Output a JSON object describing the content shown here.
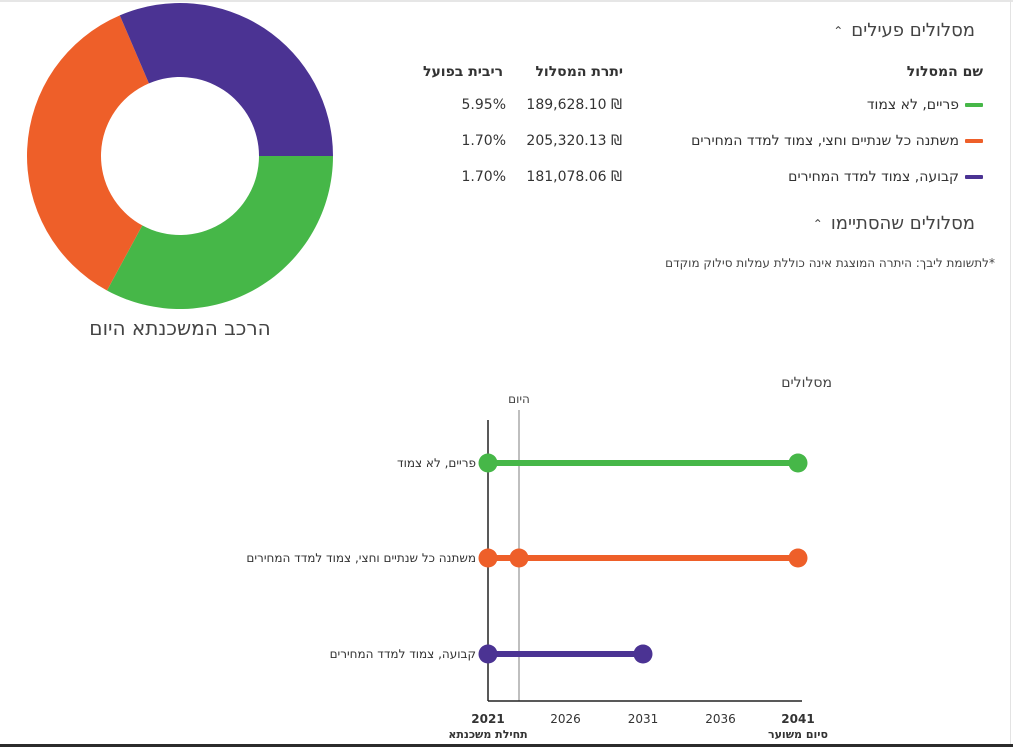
{
  "donut": {
    "title": "הרכב המשכנתא היום"
  },
  "active_tracks": {
    "header": "מסלולים פעילים",
    "columns": {
      "name": "שם המסלול",
      "balance": "יתרת המסלול",
      "rate": "ריבית בפועל"
    },
    "rows": [
      {
        "name": "פריים, לא צמוד",
        "balance": "189,628.10 ₪",
        "rate": "5.95%",
        "color": "#46b748"
      },
      {
        "name": "משתנה כל שנתיים וחצי, צמוד למדד המחירים",
        "balance": "205,320.13 ₪",
        "rate": "1.70%",
        "color": "#ee5f29"
      },
      {
        "name": "קבועה, צמוד למדד המחירים",
        "balance": "181,078.06 ₪",
        "rate": "1.70%",
        "color": "#4b3393"
      }
    ]
  },
  "ended_tracks": {
    "header": "מסלולים שהסתיימו"
  },
  "note": "*לתשומת ליבך: היתרה המוצגת אינה כוללת עמלות סילוק מוקדם",
  "chart_data": [
    {
      "type": "pie",
      "title": "הרכב המשכנתא היום",
      "categories": [
        "פריים, לא צמוד",
        "משתנה כל שנתיים וחצי, צמוד למדד המחירים",
        "קבועה, צמוד למדד המחירים"
      ],
      "values": [
        189628.1,
        205320.13,
        181078.06
      ],
      "colors": [
        "#46b748",
        "#ee5f29",
        "#4b3393"
      ],
      "donut": true
    },
    {
      "type": "timeline",
      "title": "",
      "legend_title": "מסלולים",
      "today_label": "היום",
      "today_x": 2023,
      "xlim": [
        2021,
        2041
      ],
      "xticks": [
        {
          "value": 2021,
          "label": "2021",
          "bold": true,
          "sub": "תחילת משכנתא"
        },
        {
          "value": 2026,
          "label": "2026",
          "bold": false,
          "sub": ""
        },
        {
          "value": 2031,
          "label": "2031",
          "bold": false,
          "sub": ""
        },
        {
          "value": 2036,
          "label": "2036",
          "bold": false,
          "sub": ""
        },
        {
          "value": 2041,
          "label": "2041",
          "bold": true,
          "sub": "סיום משוער"
        }
      ],
      "series": [
        {
          "name": "פריים, לא צמוד",
          "color": "#46b748",
          "start": 2021,
          "end": 2041,
          "markers": [
            2021,
            2041
          ]
        },
        {
          "name": "משתנה כל שנתיים וחצי, צמוד למדד המחירים",
          "color": "#ee5f29",
          "start": 2021,
          "end": 2041,
          "markers": [
            2021,
            2023,
            2041
          ]
        },
        {
          "name": "קבועה, צמוד למדד המחירים",
          "color": "#4b3393",
          "start": 2021,
          "end": 2031,
          "markers": [
            2021,
            2031
          ]
        }
      ]
    }
  ]
}
